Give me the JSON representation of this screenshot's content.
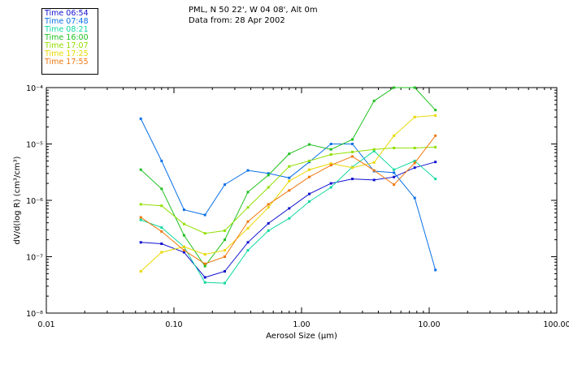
{
  "header": {
    "line1": "PML, N 50 22', W 04 08', Alt 0m",
    "line2": "Data from: 28 Apr 2002"
  },
  "legend": [
    {
      "label": "Time 06:54",
      "color": "#1010d0"
    },
    {
      "label": "Time 07:48",
      "color": "#0a70e8"
    },
    {
      "label": "Time 08:21",
      "color": "#10d8a0"
    },
    {
      "label": "Time 16:00",
      "color": "#20c020"
    },
    {
      "label": "Time 17:07",
      "color": "#90e000"
    },
    {
      "label": "Time 17:25",
      "color": "#e8d800"
    },
    {
      "label": "Time 17:55",
      "color": "#f07810"
    }
  ],
  "chart_data": {
    "type": "line",
    "xlabel": "Aerosol Size (μm)",
    "ylabel": "dV/d(log R) (cm³/cm³)",
    "xscale": "log",
    "yscale": "log",
    "xlim": [
      0.01,
      100
    ],
    "ylim": [
      1e-08,
      0.0001
    ],
    "x_ticks": [
      {
        "value": 0.01,
        "label": "0.01"
      },
      {
        "value": 0.1,
        "label": "0.10"
      },
      {
        "value": 1,
        "label": "1.00"
      },
      {
        "value": 10,
        "label": "10.00"
      },
      {
        "value": 100,
        "label": "100.00"
      }
    ],
    "y_ticks": [
      {
        "value": 0.0001,
        "label": "10⁻⁴"
      },
      {
        "value": 1e-05,
        "label": "10⁻⁵"
      },
      {
        "value": 1e-06,
        "label": "10⁻⁶"
      },
      {
        "value": 1e-07,
        "label": "10⁻⁷"
      },
      {
        "value": 1e-08,
        "label": "10⁻⁸"
      }
    ],
    "grid": false,
    "x": [
      0.055,
      0.08,
      0.12,
      0.175,
      0.25,
      0.38,
      0.55,
      0.8,
      1.15,
      1.7,
      2.5,
      3.7,
      5.3,
      7.7,
      11.2
    ],
    "series": [
      {
        "name": "Time 06:54",
        "color": "#1010d0",
        "values": [
          1.8e-07,
          1.7e-07,
          1.2e-07,
          4.3e-08,
          5.5e-08,
          1.8e-07,
          3.9e-07,
          7.2e-07,
          1.3e-06,
          2e-06,
          2.4e-06,
          2.3e-06,
          2.6e-06,
          3.8e-06,
          4.8e-06
        ]
      },
      {
        "name": "Time 07:48",
        "color": "#0a70e8",
        "values": [
          2.8e-05,
          5e-06,
          6.8e-07,
          5.5e-07,
          1.9e-06,
          3.4e-06,
          3e-06,
          2.5e-06,
          4.8e-06,
          1e-05,
          1e-05,
          3.3e-06,
          3.1e-06,
          1.1e-06,
          5.8e-08
        ]
      },
      {
        "name": "Time 08:21",
        "color": "#10d8a0",
        "values": [
          4.5e-07,
          3.3e-07,
          1.5e-07,
          3.5e-08,
          3.4e-08,
          1.3e-07,
          2.9e-07,
          4.8e-07,
          9.5e-07,
          1.7e-06,
          3.9e-06,
          7.5e-06,
          3.5e-06,
          5e-06,
          2.4e-06
        ]
      },
      {
        "name": "Time 16:00",
        "color": "#20c020",
        "values": [
          3.5e-06,
          1.6e-06,
          2.4e-07,
          6.8e-08,
          2e-07,
          1.4e-06,
          2.8e-06,
          6.7e-06,
          9.8e-06,
          8e-06,
          1.2e-05,
          5.8e-05,
          0.000115,
          0.00011,
          4e-05
        ]
      },
      {
        "name": "Time 17:07",
        "color": "#90e000",
        "values": [
          8.5e-07,
          8e-07,
          3.8e-07,
          2.6e-07,
          2.9e-07,
          7.5e-07,
          1.7e-06,
          4e-06,
          5e-06,
          6.5e-06,
          7.2e-06,
          8e-06,
          8.5e-06,
          8.5e-06,
          8.8e-06
        ]
      },
      {
        "name": "Time 17:25",
        "color": "#e8d800",
        "values": [
          5.5e-08,
          1.2e-07,
          1.5e-07,
          1.1e-07,
          1.3e-07,
          3.2e-07,
          7.5e-07,
          2.2e-06,
          3.5e-06,
          4.5e-06,
          3.8e-06,
          4.7e-06,
          1.4e-05,
          3e-05,
          3.2e-05
        ]
      },
      {
        "name": "Time 17:55",
        "color": "#f07810",
        "values": [
          5e-07,
          2.8e-07,
          1.3e-07,
          7.5e-08,
          1e-07,
          4.2e-07,
          8.5e-07,
          1.5e-06,
          2.6e-06,
          4.2e-06,
          6e-06,
          3.4e-06,
          1.9e-06,
          4.6e-06,
          1.4e-05
        ]
      }
    ]
  }
}
